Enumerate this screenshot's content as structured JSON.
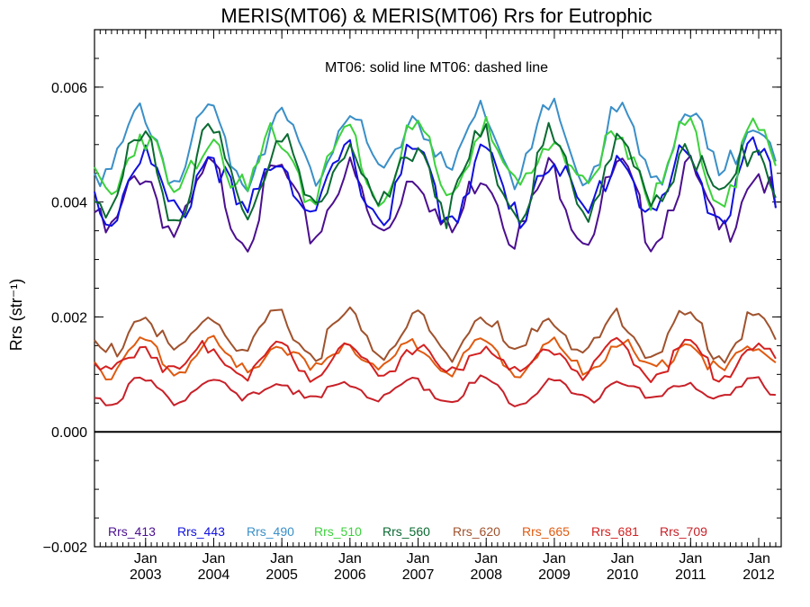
{
  "chart_data": {
    "type": "line",
    "title": "MERIS(MT06) & MERIS(MT06)  Rrs for Eutrophic",
    "ylabel": "Rrs (str⁻¹)",
    "annotation": "MT06: solid line   MT06: dashed line",
    "ylim": [
      -0.002,
      0.007
    ],
    "xlim": [
      2002.25,
      2012.33
    ],
    "y_ticks": [
      {
        "value": -0.002,
        "label": "−0.002"
      },
      {
        "value": 0.0,
        "label": "0.000"
      },
      {
        "value": 0.002,
        "label": "0.002"
      },
      {
        "value": 0.004,
        "label": "0.004"
      },
      {
        "value": 0.006,
        "label": "0.006"
      }
    ],
    "x_ticks": [
      {
        "value": 2003,
        "label1": "Jan",
        "label2": "2003"
      },
      {
        "value": 2004,
        "label1": "Jan",
        "label2": "2004"
      },
      {
        "value": 2005,
        "label1": "Jan",
        "label2": "2005"
      },
      {
        "value": 2006,
        "label1": "Jan",
        "label2": "2006"
      },
      {
        "value": 2007,
        "label1": "Jan",
        "label2": "2007"
      },
      {
        "value": 2008,
        "label1": "Jan",
        "label2": "2008"
      },
      {
        "value": 2009,
        "label1": "Jan",
        "label2": "2009"
      },
      {
        "value": 2010,
        "label1": "Jan",
        "label2": "2010"
      },
      {
        "value": 2011,
        "label1": "Jan",
        "label2": "2011"
      },
      {
        "value": 2012,
        "label1": "Jan",
        "label2": "2012"
      }
    ],
    "zero_line": 0.0,
    "legend_placement": "bottom",
    "series": [
      {
        "name": "Rrs_413",
        "color": "#4b0f8f",
        "base": 0.0041,
        "amp": 0.0011
      },
      {
        "name": "Rrs_443",
        "color": "#1010e0",
        "base": 0.0044,
        "amp": 0.0011
      },
      {
        "name": "Rrs_490",
        "color": "#3a8fc8",
        "base": 0.0051,
        "amp": 0.0011
      },
      {
        "name": "Rrs_510",
        "color": "#3cd23c",
        "base": 0.0048,
        "amp": 0.0011
      },
      {
        "name": "Rrs_560",
        "color": "#0a6a32",
        "base": 0.0046,
        "amp": 0.0012
      },
      {
        "name": "Rrs_620",
        "color": "#a0522d",
        "base": 0.00175,
        "amp": 0.00065
      },
      {
        "name": "Rrs_665",
        "color": "#e05a10",
        "base": 0.00135,
        "amp": 0.0005
      },
      {
        "name": "Rrs_681",
        "color": "#d42020",
        "base": 0.0013,
        "amp": 0.0005
      },
      {
        "name": "Rrs_709",
        "color": "#c82028",
        "base": 0.00075,
        "amp": 0.00035
      }
    ],
    "series_note": "monthly values 2002-04 to 2012-04; series values are approximated by base + seasonal amplitude pattern read from the figure"
  }
}
